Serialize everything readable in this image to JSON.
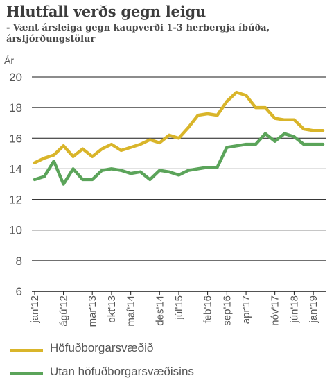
{
  "title": "Hlutfall verðs gegn leigu",
  "subtitle": "- Vænt ársleiga gegn kaupverði 1-3 herbergja íbúða, ársfjórðungstölur",
  "chart_data": {
    "type": "line",
    "ylabel": "Ár",
    "ylim": [
      6,
      20
    ],
    "yticks": [
      6,
      8,
      10,
      12,
      14,
      16,
      18,
      20
    ],
    "grid": true,
    "xtick_labels": [
      "jan'12",
      "ágú'12",
      "mar'13",
      "okt'13",
      "maí'14",
      "des'14",
      "júl'15",
      "feb'16",
      "sep'16",
      "apr'17",
      "nóv'17",
      "jún'18",
      "jan'19"
    ],
    "x": [
      "jan'12",
      "apr'12",
      "júl'12",
      "ágú'12",
      "okt'12",
      "jan'13",
      "mar'13",
      "jún'13",
      "okt'13",
      "jan'14",
      "maí'14",
      "júl'14",
      "okt'14",
      "des'14",
      "mar'15",
      "júl'15",
      "sep'15",
      "des'15",
      "feb'16",
      "jún'16",
      "sep'16",
      "des'16",
      "apr'17",
      "jún'17",
      "sep'17",
      "nóv'17",
      "mar'18",
      "jún'18",
      "sep'18",
      "jan'19",
      "apr'19"
    ],
    "series": [
      {
        "name": "Höfuðborgarsvæðið",
        "color": "#d9b52a",
        "values": [
          14.4,
          14.7,
          14.9,
          15.5,
          14.8,
          15.3,
          14.8,
          15.3,
          15.6,
          15.2,
          15.4,
          15.6,
          15.9,
          15.7,
          16.2,
          16.0,
          16.7,
          17.5,
          17.6,
          17.5,
          18.4,
          19.0,
          18.8,
          18.0,
          18.0,
          17.3,
          17.2,
          17.2,
          16.6,
          16.5,
          16.5
        ]
      },
      {
        "name": "Utan höfuðborgarsvæðisins",
        "color": "#5ba45a",
        "values": [
          13.3,
          13.5,
          14.5,
          13.0,
          14.0,
          13.3,
          13.3,
          13.9,
          14.0,
          13.9,
          13.7,
          13.8,
          13.3,
          13.9,
          13.8,
          13.6,
          13.9,
          14.0,
          14.1,
          14.1,
          15.4,
          15.5,
          15.6,
          15.6,
          16.3,
          15.8,
          16.3,
          16.1,
          15.6,
          15.6,
          15.6
        ]
      }
    ]
  },
  "legend": [
    {
      "label": "Höfuðborgarsvæðið",
      "color": "#d9b52a"
    },
    {
      "label": "Utan höfuðborgarsvæðisins",
      "color": "#5ba45a"
    }
  ]
}
